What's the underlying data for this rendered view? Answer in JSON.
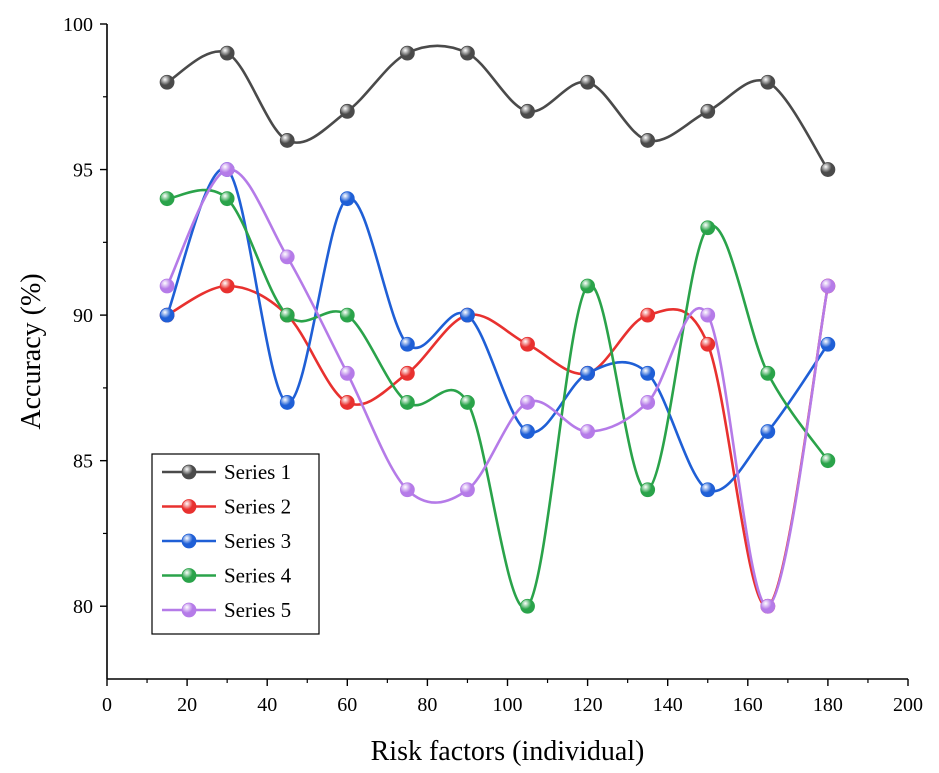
{
  "chart_data": {
    "type": "line",
    "title": "",
    "xlabel": "Risk factors (individual)",
    "ylabel": "Accuracy (%)",
    "xlim": [
      0,
      200
    ],
    "ylim": [
      77.5,
      100
    ],
    "xticks": [
      0,
      20,
      40,
      60,
      80,
      100,
      120,
      140,
      160,
      180,
      200
    ],
    "yticks": [
      80,
      85,
      90,
      95,
      100
    ],
    "grid": false,
    "legend_position": "bottom-left",
    "x": [
      15,
      30,
      45,
      60,
      75,
      90,
      105,
      120,
      135,
      150,
      165,
      180
    ],
    "series": [
      {
        "name": "Series 1",
        "color": "#4a4a4a",
        "values": [
          98,
          99,
          96,
          97,
          99,
          99,
          97,
          98,
          96,
          97,
          98,
          95
        ]
      },
      {
        "name": "Series 2",
        "color": "#e8312f",
        "values": [
          90,
          91,
          90,
          87,
          88,
          90,
          89,
          88,
          90,
          89,
          80,
          91
        ]
      },
      {
        "name": "Series 3",
        "color": "#1f5fd6",
        "values": [
          90,
          95,
          87,
          94,
          89,
          90,
          86,
          88,
          88,
          84,
          86,
          89
        ]
      },
      {
        "name": "Series 4",
        "color": "#2aa34a",
        "values": [
          94,
          94,
          90,
          90,
          87,
          87,
          80,
          91,
          84,
          93,
          88,
          85
        ]
      },
      {
        "name": "Series 5",
        "color": "#b57be8",
        "values": [
          91,
          95,
          92,
          88,
          84,
          84,
          87,
          86,
          87,
          90,
          80,
          91
        ]
      }
    ]
  }
}
